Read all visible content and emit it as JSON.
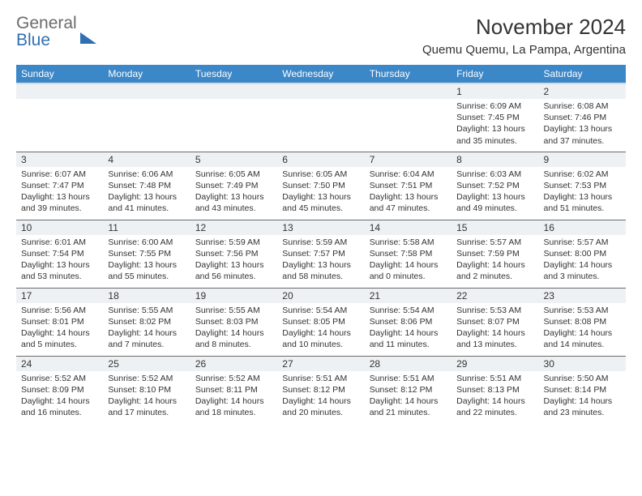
{
  "brand": {
    "part1": "General",
    "part2": "Blue"
  },
  "title": "November 2024",
  "location": "Quemu Quemu, La Pampa, Argentina",
  "colors": {
    "header_bg": "#3b87c8",
    "header_text": "#ffffff",
    "daynum_bg": "#eef1f3",
    "border": "#6b6b6b",
    "brand_gray": "#6b6b6b",
    "brand_blue": "#2f6fb3",
    "page_bg": "#ffffff",
    "text": "#333333"
  },
  "columns": [
    "Sunday",
    "Monday",
    "Tuesday",
    "Wednesday",
    "Thursday",
    "Friday",
    "Saturday"
  ],
  "weeks": [
    [
      null,
      null,
      null,
      null,
      null,
      {
        "num": "1",
        "sunrise": "Sunrise: 6:09 AM",
        "sunset": "Sunset: 7:45 PM",
        "day1": "Daylight: 13 hours",
        "day2": "and 35 minutes."
      },
      {
        "num": "2",
        "sunrise": "Sunrise: 6:08 AM",
        "sunset": "Sunset: 7:46 PM",
        "day1": "Daylight: 13 hours",
        "day2": "and 37 minutes."
      }
    ],
    [
      {
        "num": "3",
        "sunrise": "Sunrise: 6:07 AM",
        "sunset": "Sunset: 7:47 PM",
        "day1": "Daylight: 13 hours",
        "day2": "and 39 minutes."
      },
      {
        "num": "4",
        "sunrise": "Sunrise: 6:06 AM",
        "sunset": "Sunset: 7:48 PM",
        "day1": "Daylight: 13 hours",
        "day2": "and 41 minutes."
      },
      {
        "num": "5",
        "sunrise": "Sunrise: 6:05 AM",
        "sunset": "Sunset: 7:49 PM",
        "day1": "Daylight: 13 hours",
        "day2": "and 43 minutes."
      },
      {
        "num": "6",
        "sunrise": "Sunrise: 6:05 AM",
        "sunset": "Sunset: 7:50 PM",
        "day1": "Daylight: 13 hours",
        "day2": "and 45 minutes."
      },
      {
        "num": "7",
        "sunrise": "Sunrise: 6:04 AM",
        "sunset": "Sunset: 7:51 PM",
        "day1": "Daylight: 13 hours",
        "day2": "and 47 minutes."
      },
      {
        "num": "8",
        "sunrise": "Sunrise: 6:03 AM",
        "sunset": "Sunset: 7:52 PM",
        "day1": "Daylight: 13 hours",
        "day2": "and 49 minutes."
      },
      {
        "num": "9",
        "sunrise": "Sunrise: 6:02 AM",
        "sunset": "Sunset: 7:53 PM",
        "day1": "Daylight: 13 hours",
        "day2": "and 51 minutes."
      }
    ],
    [
      {
        "num": "10",
        "sunrise": "Sunrise: 6:01 AM",
        "sunset": "Sunset: 7:54 PM",
        "day1": "Daylight: 13 hours",
        "day2": "and 53 minutes."
      },
      {
        "num": "11",
        "sunrise": "Sunrise: 6:00 AM",
        "sunset": "Sunset: 7:55 PM",
        "day1": "Daylight: 13 hours",
        "day2": "and 55 minutes."
      },
      {
        "num": "12",
        "sunrise": "Sunrise: 5:59 AM",
        "sunset": "Sunset: 7:56 PM",
        "day1": "Daylight: 13 hours",
        "day2": "and 56 minutes."
      },
      {
        "num": "13",
        "sunrise": "Sunrise: 5:59 AM",
        "sunset": "Sunset: 7:57 PM",
        "day1": "Daylight: 13 hours",
        "day2": "and 58 minutes."
      },
      {
        "num": "14",
        "sunrise": "Sunrise: 5:58 AM",
        "sunset": "Sunset: 7:58 PM",
        "day1": "Daylight: 14 hours",
        "day2": "and 0 minutes."
      },
      {
        "num": "15",
        "sunrise": "Sunrise: 5:57 AM",
        "sunset": "Sunset: 7:59 PM",
        "day1": "Daylight: 14 hours",
        "day2": "and 2 minutes."
      },
      {
        "num": "16",
        "sunrise": "Sunrise: 5:57 AM",
        "sunset": "Sunset: 8:00 PM",
        "day1": "Daylight: 14 hours",
        "day2": "and 3 minutes."
      }
    ],
    [
      {
        "num": "17",
        "sunrise": "Sunrise: 5:56 AM",
        "sunset": "Sunset: 8:01 PM",
        "day1": "Daylight: 14 hours",
        "day2": "and 5 minutes."
      },
      {
        "num": "18",
        "sunrise": "Sunrise: 5:55 AM",
        "sunset": "Sunset: 8:02 PM",
        "day1": "Daylight: 14 hours",
        "day2": "and 7 minutes."
      },
      {
        "num": "19",
        "sunrise": "Sunrise: 5:55 AM",
        "sunset": "Sunset: 8:03 PM",
        "day1": "Daylight: 14 hours",
        "day2": "and 8 minutes."
      },
      {
        "num": "20",
        "sunrise": "Sunrise: 5:54 AM",
        "sunset": "Sunset: 8:05 PM",
        "day1": "Daylight: 14 hours",
        "day2": "and 10 minutes."
      },
      {
        "num": "21",
        "sunrise": "Sunrise: 5:54 AM",
        "sunset": "Sunset: 8:06 PM",
        "day1": "Daylight: 14 hours",
        "day2": "and 11 minutes."
      },
      {
        "num": "22",
        "sunrise": "Sunrise: 5:53 AM",
        "sunset": "Sunset: 8:07 PM",
        "day1": "Daylight: 14 hours",
        "day2": "and 13 minutes."
      },
      {
        "num": "23",
        "sunrise": "Sunrise: 5:53 AM",
        "sunset": "Sunset: 8:08 PM",
        "day1": "Daylight: 14 hours",
        "day2": "and 14 minutes."
      }
    ],
    [
      {
        "num": "24",
        "sunrise": "Sunrise: 5:52 AM",
        "sunset": "Sunset: 8:09 PM",
        "day1": "Daylight: 14 hours",
        "day2": "and 16 minutes."
      },
      {
        "num": "25",
        "sunrise": "Sunrise: 5:52 AM",
        "sunset": "Sunset: 8:10 PM",
        "day1": "Daylight: 14 hours",
        "day2": "and 17 minutes."
      },
      {
        "num": "26",
        "sunrise": "Sunrise: 5:52 AM",
        "sunset": "Sunset: 8:11 PM",
        "day1": "Daylight: 14 hours",
        "day2": "and 18 minutes."
      },
      {
        "num": "27",
        "sunrise": "Sunrise: 5:51 AM",
        "sunset": "Sunset: 8:12 PM",
        "day1": "Daylight: 14 hours",
        "day2": "and 20 minutes."
      },
      {
        "num": "28",
        "sunrise": "Sunrise: 5:51 AM",
        "sunset": "Sunset: 8:12 PM",
        "day1": "Daylight: 14 hours",
        "day2": "and 21 minutes."
      },
      {
        "num": "29",
        "sunrise": "Sunrise: 5:51 AM",
        "sunset": "Sunset: 8:13 PM",
        "day1": "Daylight: 14 hours",
        "day2": "and 22 minutes."
      },
      {
        "num": "30",
        "sunrise": "Sunrise: 5:50 AM",
        "sunset": "Sunset: 8:14 PM",
        "day1": "Daylight: 14 hours",
        "day2": "and 23 minutes."
      }
    ]
  ]
}
